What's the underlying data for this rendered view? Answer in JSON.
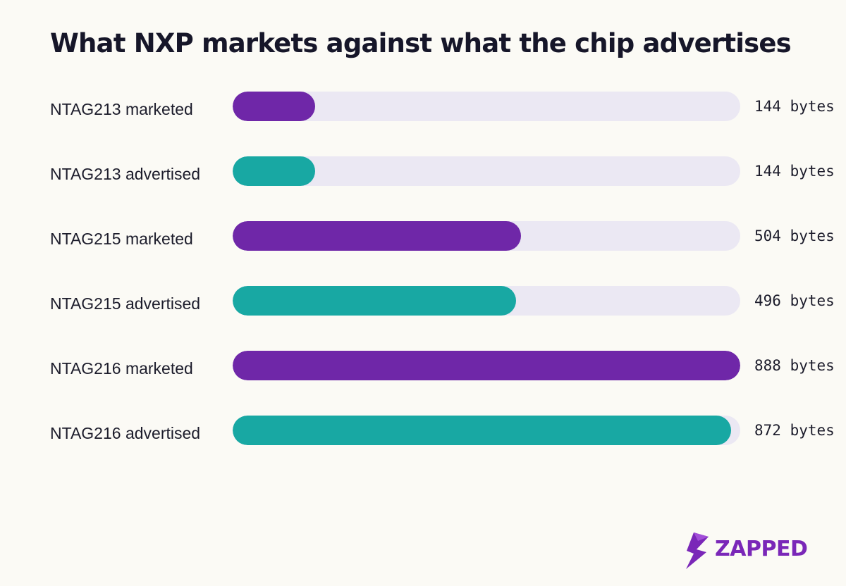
{
  "chart_data": {
    "type": "bar",
    "orientation": "horizontal",
    "title": "What NXP markets against what the chip advertises",
    "categories": [
      "NTAG213 marketed",
      "NTAG213 advertised",
      "NTAG215 marketed",
      "NTAG215 advertised",
      "NTAG216 marketed",
      "NTAG216 advertised"
    ],
    "values": [
      144,
      144,
      504,
      496,
      888,
      872
    ],
    "value_labels": [
      "144 bytes",
      "144 bytes",
      "504 bytes",
      "496 bytes",
      "888 bytes",
      "872 bytes"
    ],
    "kinds": [
      "marketed",
      "advertised",
      "marketed",
      "advertised",
      "marketed",
      "advertised"
    ],
    "xlim": [
      0,
      888
    ],
    "xlabel": "",
    "ylabel": "",
    "grid": false,
    "legend": "none"
  },
  "colors": {
    "marketed": "#6f27a8",
    "advertised": "#18a8a3",
    "track": "#ebe8f3",
    "background": "#fbfaf5",
    "text": "#161629",
    "brand": "#7a27b8"
  },
  "brand": {
    "name": "ZAPPED",
    "icon": "lightning-bolt-icon"
  }
}
